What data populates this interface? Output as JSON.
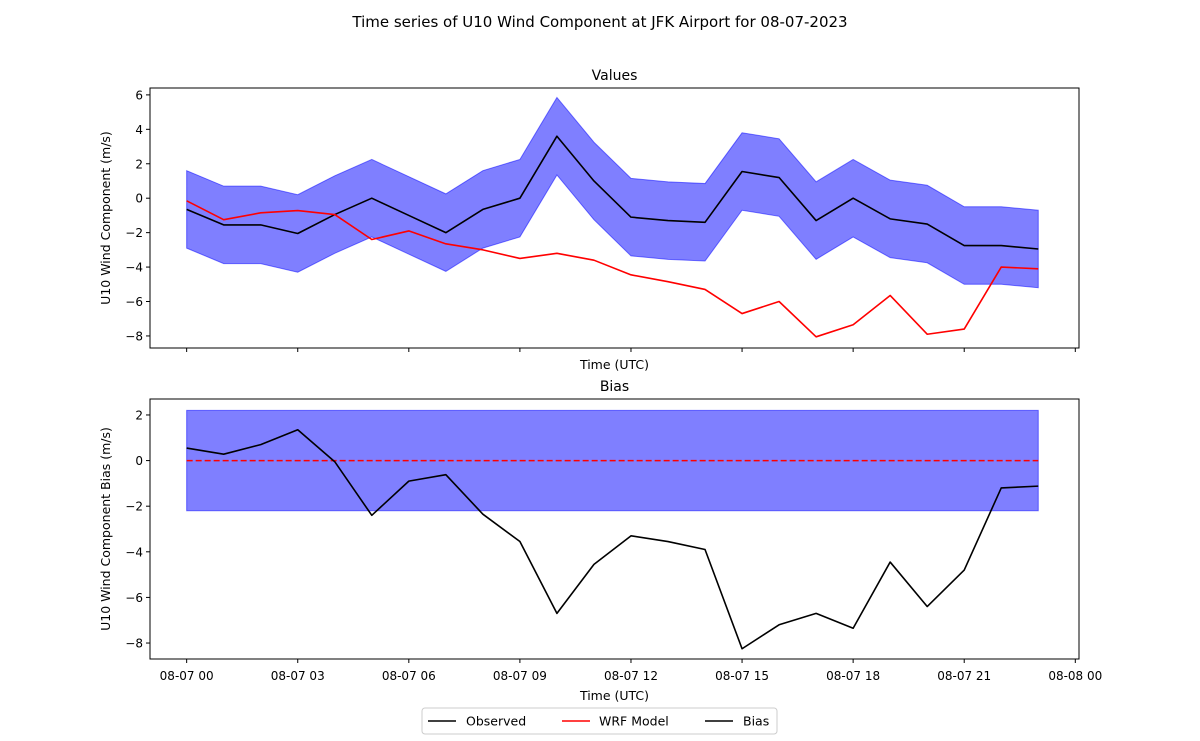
{
  "suptitle": "Time series of U10 Wind Component at JFK Airport for 08-07-2023",
  "x_tick_labels": [
    "08-07 00",
    "08-07 03",
    "08-07 06",
    "08-07 09",
    "08-07 12",
    "08-07 15",
    "08-07 18",
    "08-07 21",
    "08-08 00"
  ],
  "legend": {
    "entries": [
      "Observed",
      "WRF Model",
      "Bias"
    ],
    "placement": "bottom-center"
  },
  "colors": {
    "observed": "#000000",
    "wrf": "#ff0000",
    "bias": "#000000",
    "band": "#0000ff",
    "zero_line": "#ff0000"
  },
  "chart_data": [
    {
      "type": "line",
      "title": "Values",
      "xlabel": "Time (UTC)",
      "ylabel": "U10 Wind Component (m/s)",
      "x_hours": [
        0,
        1,
        2,
        3,
        4,
        5,
        6,
        7,
        8,
        9,
        10,
        11,
        12,
        13,
        14,
        15,
        16,
        17,
        18,
        19,
        20,
        21,
        22,
        23
      ],
      "xlim_hours": [
        -0.99,
        24.1
      ],
      "ylim": [
        -8.7,
        6.4
      ],
      "yticks": [
        6,
        4,
        2,
        0,
        -2,
        -4,
        -6,
        -8
      ],
      "series": [
        {
          "name": "Observed",
          "color": "#000000",
          "values": [
            -0.65,
            -1.55,
            -1.55,
            -2.05,
            -0.95,
            0.0,
            -1.0,
            -2.0,
            -0.65,
            0.0,
            3.6,
            1.0,
            -1.1,
            -1.3,
            -1.4,
            1.55,
            1.2,
            -1.3,
            0.0,
            -1.2,
            -1.5,
            -2.75,
            -2.75,
            -2.95
          ]
        },
        {
          "name": "WRF Model",
          "color": "#ff0000",
          "values": [
            -0.15,
            -1.25,
            -0.85,
            -0.72,
            -0.95,
            -2.4,
            -1.9,
            -2.65,
            -3.0,
            -3.5,
            -3.2,
            -3.6,
            -4.45,
            -4.85,
            -5.3,
            -6.7,
            -6.0,
            -8.05,
            -7.35,
            -5.65,
            -7.9,
            -7.6,
            -4.0,
            -4.1
          ]
        }
      ],
      "band": {
        "center": "Observed",
        "half_width": 2.25
      }
    },
    {
      "type": "line",
      "title": "Bias",
      "xlabel": "Time (UTC)",
      "ylabel": "U10 Wind Component Bias (m/s)",
      "x_hours": [
        0,
        1,
        2,
        3,
        4,
        5,
        6,
        7,
        8,
        9,
        10,
        11,
        12,
        13,
        14,
        15,
        16,
        17,
        18,
        19,
        20,
        21,
        22,
        23
      ],
      "xlim_hours": [
        -0.99,
        24.1
      ],
      "ylim": [
        -8.7,
        2.7
      ],
      "yticks": [
        2,
        0,
        -2,
        -4,
        -6,
        -8
      ],
      "series": [
        {
          "name": "Bias",
          "color": "#000000",
          "values": [
            0.55,
            0.28,
            0.7,
            1.35,
            -0.05,
            -2.4,
            -0.9,
            -0.62,
            -2.35,
            -3.55,
            -6.7,
            -4.55,
            -3.3,
            -3.55,
            -3.9,
            -8.25,
            -7.2,
            -6.7,
            -7.35,
            -4.45,
            -6.4,
            -4.8,
            -1.2,
            -1.12
          ]
        }
      ],
      "band": {
        "lower": -2.2,
        "upper": 2.2
      },
      "reference_line": {
        "y": 0,
        "style": "dashed",
        "color": "#ff0000"
      }
    }
  ]
}
